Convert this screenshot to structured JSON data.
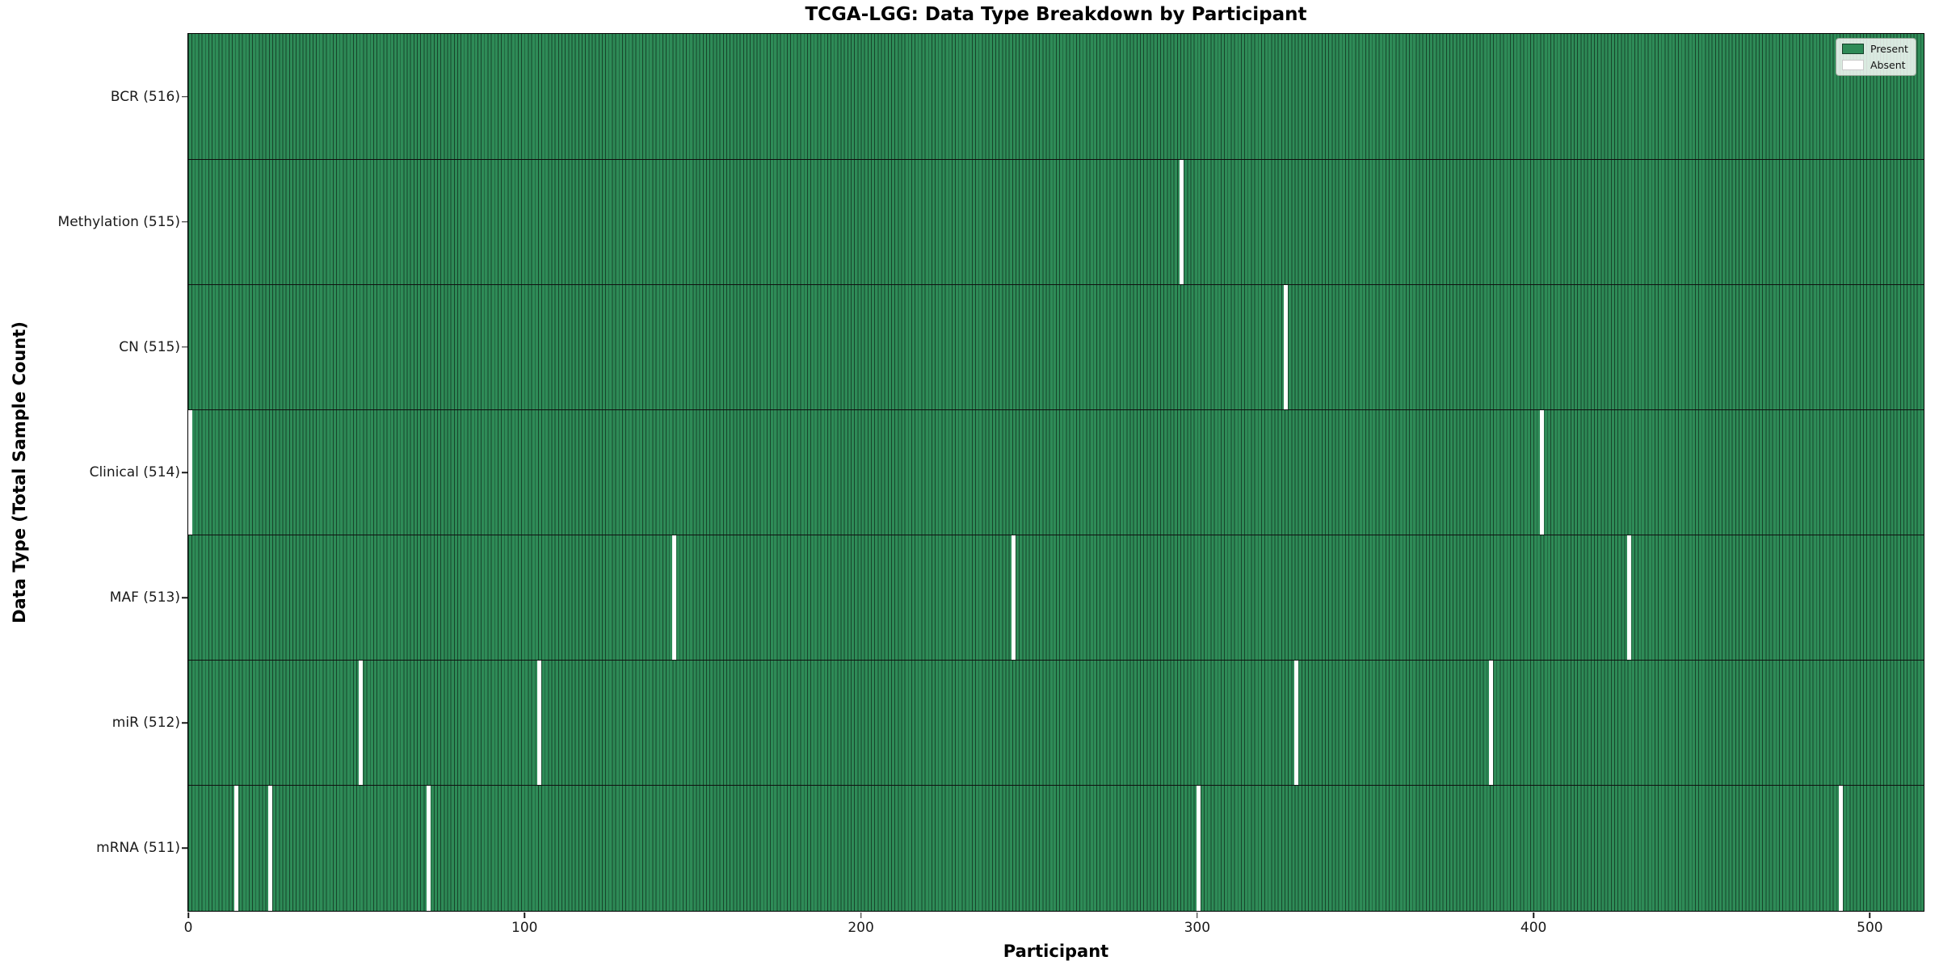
{
  "chart_data": {
    "type": "heatmap",
    "title": "TCGA-LGG: Data Type Breakdown by Participant",
    "xlabel": "Participant",
    "ylabel": "Data Type (Total Sample Count)",
    "x_ticks": [
      0,
      100,
      200,
      300,
      400,
      500
    ],
    "x_range": [
      0,
      516
    ],
    "n_participants": 516,
    "present_color": "#2e8b57",
    "absent_color": "#ffffff",
    "legend_position": "upper right",
    "grid": "row separators only",
    "legend": [
      {
        "label": "Present",
        "color": "#2e8b57"
      },
      {
        "label": "Absent",
        "color": "#ffffff"
      }
    ],
    "rows": [
      {
        "name": "BCR",
        "label": "BCR (516)",
        "total": 516,
        "absent_participants": []
      },
      {
        "name": "Methylation",
        "label": "Methylation (515)",
        "total": 515,
        "absent_participants": [
          295
        ]
      },
      {
        "name": "CN",
        "label": "CN (515)",
        "total": 515,
        "absent_participants": [
          326
        ]
      },
      {
        "name": "Clinical",
        "label": "Clinical (514)",
        "total": 514,
        "absent_participants": [
          0,
          402
        ]
      },
      {
        "name": "MAF",
        "label": "MAF (513)",
        "total": 513,
        "absent_participants": [
          144,
          245,
          428
        ]
      },
      {
        "name": "miR",
        "label": "miR (512)",
        "total": 512,
        "absent_participants": [
          51,
          104,
          329,
          387
        ]
      },
      {
        "name": "mRNA",
        "label": "mRNA (511)",
        "total": 511,
        "absent_participants": [
          14,
          24,
          71,
          300,
          491
        ]
      }
    ]
  }
}
